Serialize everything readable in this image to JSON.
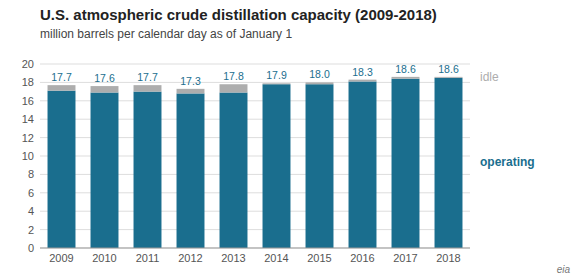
{
  "chart_data": {
    "type": "bar",
    "stacked": true,
    "title": "U.S. atmospheric crude distillation capacity (2009-2018)",
    "subtitle": "million barrels per calendar day as of January 1",
    "categories": [
      "2009",
      "2010",
      "2011",
      "2012",
      "2013",
      "2014",
      "2015",
      "2016",
      "2017",
      "2018"
    ],
    "series": [
      {
        "name": "operating",
        "color": "#1a6e8e",
        "values": [
          17.1,
          16.9,
          17.0,
          16.8,
          16.9,
          17.8,
          17.8,
          18.1,
          18.4,
          18.5
        ]
      },
      {
        "name": "idle",
        "color": "#adadad",
        "values": [
          0.6,
          0.7,
          0.7,
          0.5,
          0.9,
          0.1,
          0.2,
          0.2,
          0.2,
          0.1
        ]
      }
    ],
    "totals": [
      17.7,
      17.6,
      17.7,
      17.3,
      17.8,
      17.9,
      18.0,
      18.3,
      18.6,
      18.6
    ],
    "total_labels": [
      "17.7",
      "17.6",
      "17.7",
      "17.3",
      "17.8",
      "17.9",
      "18.0",
      "18.3",
      "18.6",
      "18.6"
    ],
    "total_color": "#1a6e8e",
    "ylim": [
      0,
      20
    ],
    "yticks": [
      0,
      2,
      4,
      6,
      8,
      10,
      12,
      14,
      16,
      18,
      20
    ],
    "grid": true,
    "annotations": [
      "eia"
    ]
  }
}
